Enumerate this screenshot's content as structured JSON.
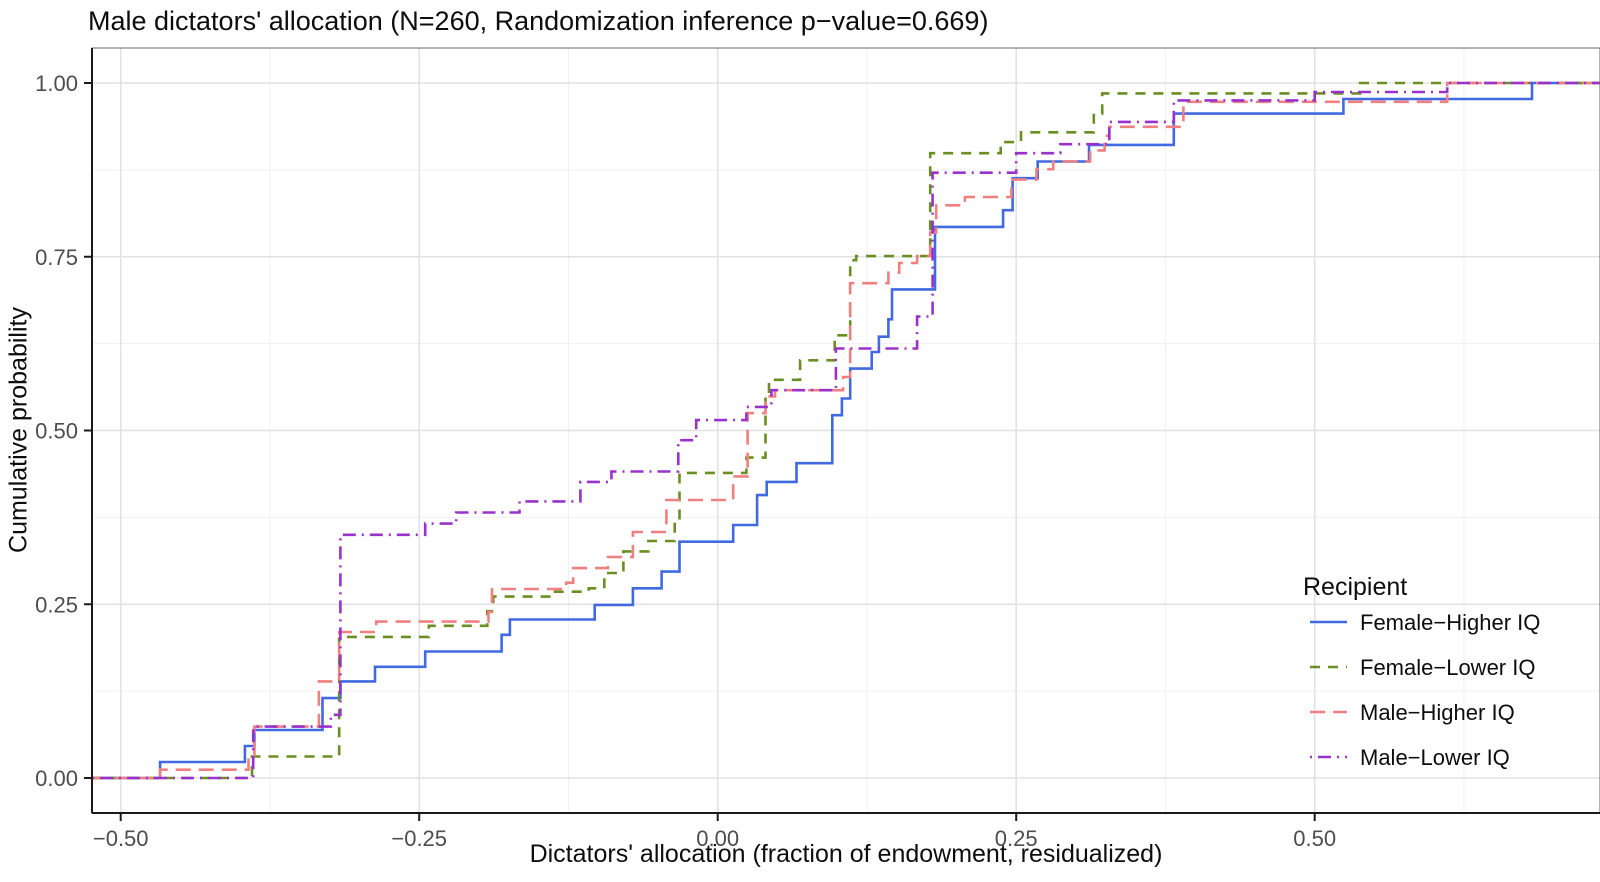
{
  "chart_data": {
    "type": "line",
    "subtype": "ecdf-step",
    "title": "Male dictators' allocation (N=260, Randomization inference p−value=0.669)",
    "xlabel": "Dictators' allocation (fraction of endowment, residualized)",
    "ylabel": "Cumulative probability",
    "grid": "on",
    "xlim": [
      -0.524,
      0.739
    ],
    "ylim": [
      -0.05,
      1.05
    ],
    "x_ticks": {
      "values": [
        -0.5,
        -0.25,
        0.0,
        0.25,
        0.5
      ],
      "labels": [
        "−0.50",
        "−0.25",
        "0.00",
        "0.25",
        "0.50"
      ],
      "minor": [
        -0.375,
        -0.125,
        0.125,
        0.375,
        0.625
      ]
    },
    "y_ticks": {
      "values": [
        0.0,
        0.25,
        0.5,
        0.75,
        1.0
      ],
      "labels": [
        "0.00",
        "0.25",
        "0.50",
        "0.75",
        "1.00"
      ],
      "minor": [
        0.125,
        0.375,
        0.625,
        0.875
      ]
    },
    "legend": {
      "title": "Recipient",
      "position": "inside-right"
    },
    "series": [
      {
        "name": "Female−Higher IQ",
        "color": "#4169E1",
        "dash": "",
        "points": [
          [
            -0.467,
            0.023
          ],
          [
            -0.396,
            0.046
          ],
          [
            -0.388,
            0.069
          ],
          [
            -0.331,
            0.115
          ],
          [
            -0.316,
            0.139
          ],
          [
            -0.287,
            0.16
          ],
          [
            -0.245,
            0.182
          ],
          [
            -0.181,
            0.206
          ],
          [
            -0.174,
            0.228
          ],
          [
            -0.103,
            0.249
          ],
          [
            -0.071,
            0.273
          ],
          [
            -0.047,
            0.297
          ],
          [
            -0.032,
            0.34
          ],
          [
            0.013,
            0.364
          ],
          [
            0.033,
            0.407
          ],
          [
            0.041,
            0.426
          ],
          [
            0.066,
            0.453
          ],
          [
            0.096,
            0.522
          ],
          [
            0.104,
            0.546
          ],
          [
            0.111,
            0.589
          ],
          [
            0.129,
            0.613
          ],
          [
            0.135,
            0.635
          ],
          [
            0.143,
            0.66
          ],
          [
            0.146,
            0.703
          ],
          [
            0.182,
            0.793
          ],
          [
            0.239,
            0.817
          ],
          [
            0.247,
            0.863
          ],
          [
            0.268,
            0.887
          ],
          [
            0.311,
            0.911
          ],
          [
            0.382,
            0.956
          ],
          [
            0.524,
            0.977
          ],
          [
            0.682,
            1.0
          ]
        ]
      },
      {
        "name": "Female−Lower IQ",
        "color": "#6B8E23",
        "dash": "10 8",
        "points": [
          [
            -0.39,
            0.031
          ],
          [
            -0.317,
            0.203
          ],
          [
            -0.242,
            0.219
          ],
          [
            -0.193,
            0.24
          ],
          [
            -0.188,
            0.261
          ],
          [
            -0.138,
            0.268
          ],
          [
            -0.108,
            0.273
          ],
          [
            -0.095,
            0.295
          ],
          [
            -0.079,
            0.326
          ],
          [
            -0.058,
            0.341
          ],
          [
            -0.036,
            0.369
          ],
          [
            -0.032,
            0.439
          ],
          [
            0.024,
            0.461
          ],
          [
            0.04,
            0.551
          ],
          [
            0.043,
            0.573
          ],
          [
            0.069,
            0.601
          ],
          [
            0.098,
            0.637
          ],
          [
            0.111,
            0.745
          ],
          [
            0.116,
            0.751
          ],
          [
            0.178,
            0.899
          ],
          [
            0.237,
            0.915
          ],
          [
            0.254,
            0.929
          ],
          [
            0.315,
            0.956
          ],
          [
            0.322,
            0.985
          ],
          [
            0.538,
            1.0
          ]
        ]
      },
      {
        "name": "Male−Higher IQ",
        "color": "#F08080",
        "dash": "15 8",
        "points": [
          [
            -0.467,
            0.012
          ],
          [
            -0.393,
            0.031
          ],
          [
            -0.388,
            0.074
          ],
          [
            -0.334,
            0.139
          ],
          [
            -0.317,
            0.21
          ],
          [
            -0.286,
            0.225
          ],
          [
            -0.192,
            0.239
          ],
          [
            -0.189,
            0.272
          ],
          [
            -0.127,
            0.281
          ],
          [
            -0.121,
            0.302
          ],
          [
            -0.092,
            0.318
          ],
          [
            -0.071,
            0.354
          ],
          [
            -0.043,
            0.4
          ],
          [
            0.013,
            0.434
          ],
          [
            0.025,
            0.525
          ],
          [
            0.04,
            0.549
          ],
          [
            0.048,
            0.558
          ],
          [
            0.105,
            0.577
          ],
          [
            0.111,
            0.712
          ],
          [
            0.143,
            0.727
          ],
          [
            0.152,
            0.741
          ],
          [
            0.167,
            0.751
          ],
          [
            0.178,
            0.785
          ],
          [
            0.183,
            0.824
          ],
          [
            0.207,
            0.836
          ],
          [
            0.246,
            0.861
          ],
          [
            0.267,
            0.876
          ],
          [
            0.281,
            0.887
          ],
          [
            0.312,
            0.903
          ],
          [
            0.324,
            0.924
          ],
          [
            0.328,
            0.937
          ],
          [
            0.39,
            0.973
          ],
          [
            0.611,
            1.0
          ]
        ]
      },
      {
        "name": "Male−Lower IQ",
        "color": "#9932CC",
        "dash": "2 6 13 6",
        "points": [
          [
            -0.389,
            0.074
          ],
          [
            -0.324,
            0.091
          ],
          [
            -0.316,
            0.35
          ],
          [
            -0.245,
            0.366
          ],
          [
            -0.219,
            0.382
          ],
          [
            -0.166,
            0.398
          ],
          [
            -0.115,
            0.426
          ],
          [
            -0.089,
            0.441
          ],
          [
            -0.033,
            0.486
          ],
          [
            -0.018,
            0.515
          ],
          [
            0.024,
            0.534
          ],
          [
            0.045,
            0.558
          ],
          [
            0.099,
            0.618
          ],
          [
            0.167,
            0.664
          ],
          [
            0.18,
            0.871
          ],
          [
            0.25,
            0.899
          ],
          [
            0.287,
            0.912
          ],
          [
            0.328,
            0.944
          ],
          [
            0.382,
            0.975
          ],
          [
            0.5,
            0.987
          ],
          [
            0.611,
            1.0
          ]
        ]
      }
    ],
    "style": {
      "grid_major_color": "#E2E2E2",
      "grid_minor_color": "#F0F0F0",
      "axis_color": "#1a1a1a",
      "tick_label_color": "#4d4d4d",
      "panel_border_color": "#666666",
      "line_width": 2.6
    }
  }
}
